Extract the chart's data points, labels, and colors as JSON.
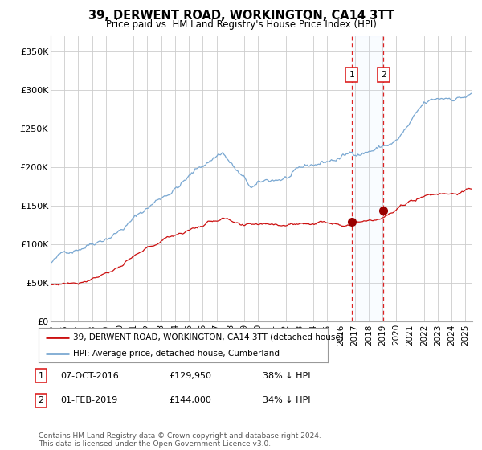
{
  "title": "39, DERWENT ROAD, WORKINGTON, CA14 3TT",
  "subtitle": "Price paid vs. HM Land Registry's House Price Index (HPI)",
  "ylabel_ticks": [
    "£0",
    "£50K",
    "£100K",
    "£150K",
    "£200K",
    "£250K",
    "£300K",
    "£350K"
  ],
  "ytick_values": [
    0,
    50000,
    100000,
    150000,
    200000,
    250000,
    300000,
    350000
  ],
  "ylim": [
    0,
    370000
  ],
  "xlim_start": 1995.0,
  "xlim_end": 2025.5,
  "marker1_date": 2016.77,
  "marker2_date": 2019.08,
  "marker1_price": 129950,
  "marker2_price": 144000,
  "legend_line1": "39, DERWENT ROAD, WORKINGTON, CA14 3TT (detached house)",
  "legend_line2": "HPI: Average price, detached house, Cumberland",
  "footer": "Contains HM Land Registry data © Crown copyright and database right 2024.\nThis data is licensed under the Open Government Licence v3.0.",
  "hpi_color": "#7aa8d2",
  "price_color": "#cc1111",
  "marker_color": "#990000",
  "vline_color": "#dd2222",
  "span_color": "#ddeeff",
  "bg_color": "#ffffff",
  "grid_color": "#cccccc"
}
